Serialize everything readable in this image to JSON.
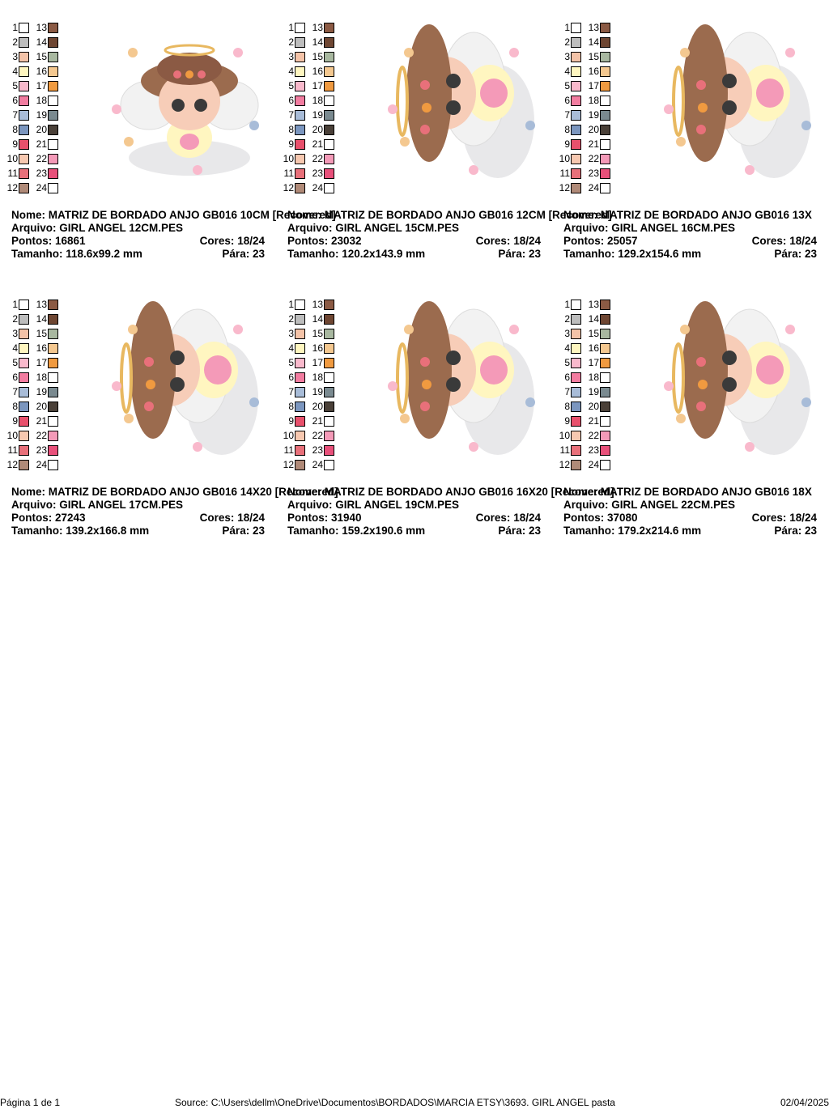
{
  "labels": {
    "name": "Nome:",
    "file": "Arquivo:",
    "stitches": "Pontos:",
    "colors": "Cores:",
    "size": "Tamanho:",
    "stops": "Pára:"
  },
  "swatches": [
    {
      "number": "1",
      "color": "#ffffff"
    },
    {
      "number": "2",
      "color": "#bdbdbd"
    },
    {
      "number": "3",
      "color": "#f4c3a8"
    },
    {
      "number": "4",
      "color": "#fff6c0"
    },
    {
      "number": "5",
      "color": "#f9b9cc"
    },
    {
      "number": "6",
      "color": "#f27ca0"
    },
    {
      "number": "7",
      "color": "#a8bcd8"
    },
    {
      "number": "8",
      "color": "#7b96bf"
    },
    {
      "number": "9",
      "color": "#e8506c"
    },
    {
      "number": "10",
      "color": "#f7c8b0"
    },
    {
      "number": "11",
      "color": "#e8707a"
    },
    {
      "number": "12",
      "color": "#b08a78"
    },
    {
      "number": "13",
      "color": "#8b5a44"
    },
    {
      "number": "14",
      "color": "#6e4632"
    },
    {
      "number": "15",
      "color": "#a8b8a0"
    },
    {
      "number": "16",
      "color": "#f4c890"
    },
    {
      "number": "17",
      "color": "#f09a40"
    },
    {
      "number": "18",
      "color": "#ffffff"
    },
    {
      "number": "19",
      "color": "#7a8a90"
    },
    {
      "number": "20",
      "color": "#4a4038"
    },
    {
      "number": "21",
      "color": "#ffffff"
    },
    {
      "number": "22",
      "color": "#f49ab8"
    },
    {
      "number": "23",
      "color": "#e8507a"
    },
    {
      "number": "24",
      "color": "#ffffff"
    }
  ],
  "cards": [
    {
      "name": "MATRIZ DE BORDADO ANJO GB016 10CM [Recovered]",
      "file": "GIRL ANGEL 12CM.PES",
      "stitches": 16861,
      "colors": "18/24",
      "size": "118.6x99.2 mm",
      "stops": 23
    },
    {
      "name": "MATRIZ DE BORDADO ANJO GB016 12CM [Recovered]",
      "file": "GIRL ANGEL 15CM.PES",
      "stitches": 23032,
      "colors": "18/24",
      "size": "120.2x143.9 mm",
      "stops": 23
    },
    {
      "name": "MATRIZ DE BORDADO ANJO GB016 13X",
      "file": "GIRL ANGEL 16CM.PES",
      "stitches": 25057,
      "colors": "18/24",
      "size": "129.2x154.6 mm",
      "stops": 23
    },
    {
      "name": "MATRIZ DE BORDADO ANJO GB016 14X20 [Recovered]",
      "file": "GIRL ANGEL 17CM.PES",
      "stitches": 27243,
      "colors": "18/24",
      "size": "139.2x166.8 mm",
      "stops": 23
    },
    {
      "name": "MATRIZ DE BORDADO ANJO GB016 16X20 [Recovered]",
      "file": "GIRL ANGEL 19CM.PES",
      "stitches": 31940,
      "colors": "18/24",
      "size": "159.2x190.6 mm",
      "stops": 23
    },
    {
      "name": "MATRIZ DE BORDADO ANJO GB016 18X",
      "file": "GIRL ANGEL 22CM.PES",
      "stitches": 37080,
      "colors": "18/24",
      "size": "179.2x214.6 mm",
      "stops": 23
    }
  ],
  "footer": {
    "page": "Página 1 de 1",
    "source": "Source: C:\\Users\\dellm\\OneDrive\\Documentos\\BORDADOS\\MARCIA ETSY\\3693. GIRL ANGEL pasta",
    "date": "02/04/2025"
  }
}
